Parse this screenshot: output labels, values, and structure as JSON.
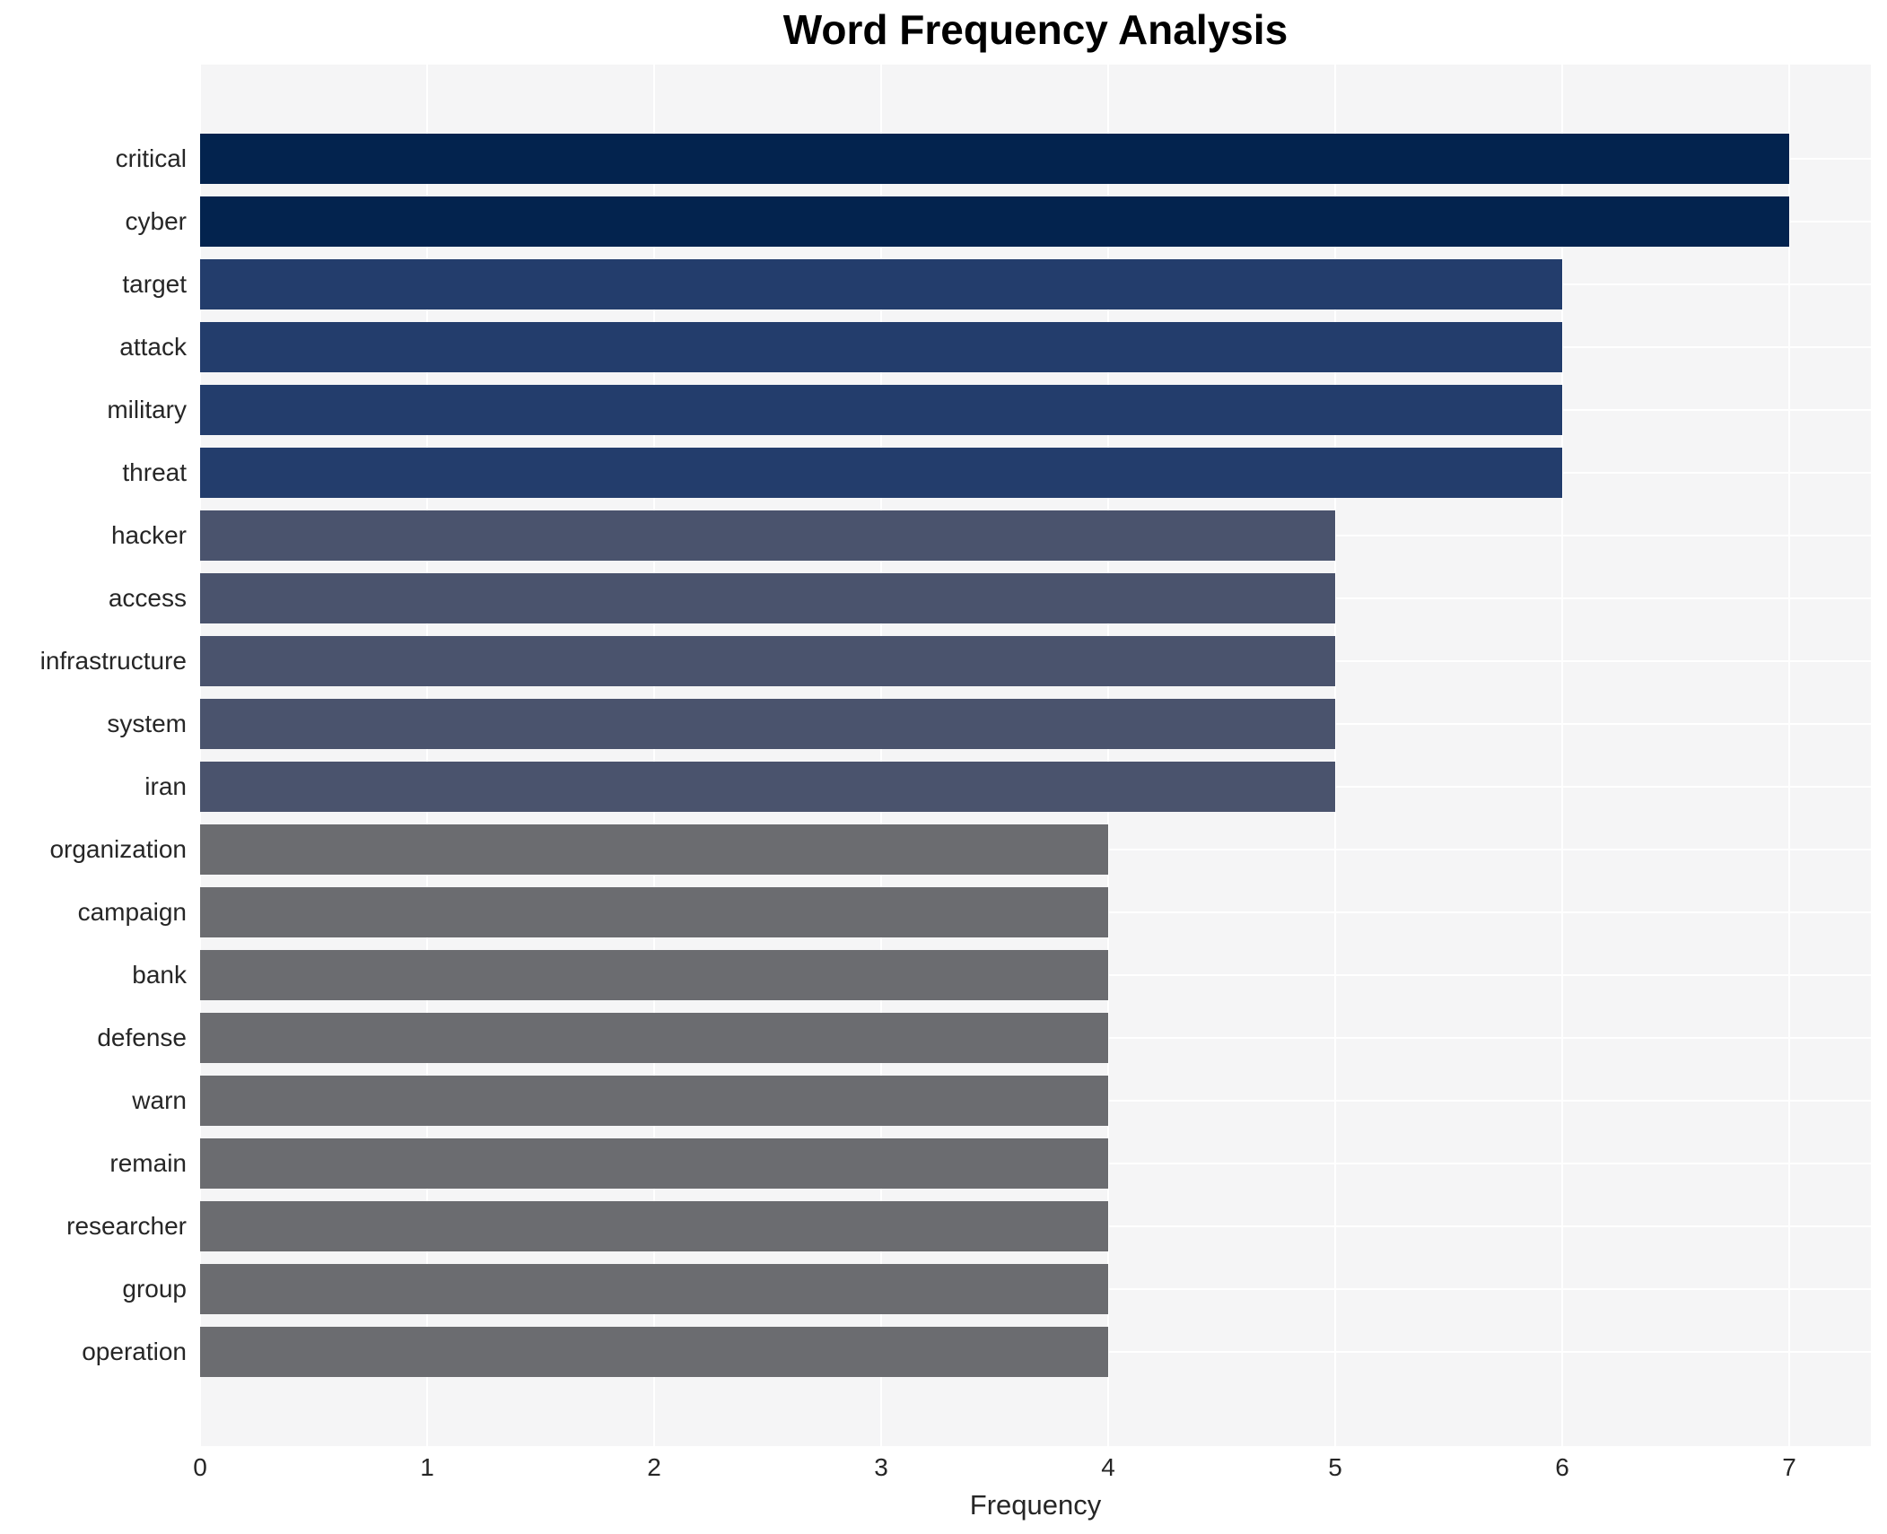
{
  "chart_data": {
    "type": "bar",
    "orientation": "horizontal",
    "title": "Word Frequency Analysis",
    "xlabel": "Frequency",
    "ylabel": "",
    "categories": [
      "critical",
      "cyber",
      "target",
      "attack",
      "military",
      "threat",
      "hacker",
      "access",
      "infrastructure",
      "system",
      "iran",
      "organization",
      "campaign",
      "bank",
      "defense",
      "warn",
      "remain",
      "researcher",
      "group",
      "operation"
    ],
    "values": [
      7,
      7,
      6,
      6,
      6,
      6,
      5,
      5,
      5,
      5,
      5,
      4,
      4,
      4,
      4,
      4,
      4,
      4,
      4,
      4
    ],
    "xticks": [
      0,
      1,
      2,
      3,
      4,
      5,
      6,
      7
    ],
    "xlim": [
      0,
      7.36
    ],
    "grid": true,
    "legend": false,
    "colors": {
      "bar_by_value": {
        "7": "#03234e",
        "6": "#233d6c",
        "5": "#4a536d",
        "4": "#6b6c70"
      },
      "plot_background": "#f5f5f6",
      "gridline": "#ffffff",
      "tick_text": "#262626",
      "title_text": "#000000",
      "page_background": "#ffffff"
    }
  }
}
